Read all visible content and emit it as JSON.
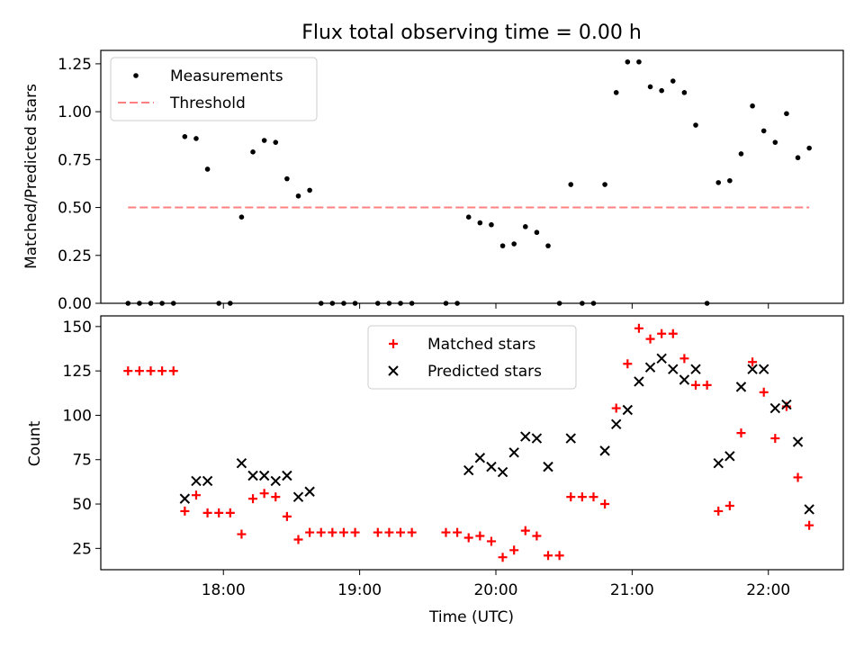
{
  "chart_data": [
    {
      "type": "scatter",
      "title": "Flux total observing time = 0.00 h",
      "xlabel": "",
      "ylabel": "Matched/Predicted stars",
      "ylim": [
        0,
        1.32
      ],
      "yticks": [
        "0.00",
        "0.25",
        "0.50",
        "0.75",
        "1.00",
        "1.25"
      ],
      "ytick_values": [
        0,
        0.25,
        0.5,
        0.75,
        1.0,
        1.25
      ],
      "legend_position": "upper-left",
      "series": [
        {
          "name": "Measurements",
          "marker": "dot",
          "color": "#000000",
          "points": [
            [
              "17:18",
              0
            ],
            [
              "17:23",
              0
            ],
            [
              "17:28",
              0
            ],
            [
              "17:33",
              0
            ],
            [
              "17:38",
              0
            ],
            [
              "17:43",
              0.87
            ],
            [
              "17:48",
              0.86
            ],
            [
              "17:53",
              0.7
            ],
            [
              "17:58",
              0
            ],
            [
              "18:03",
              0
            ],
            [
              "18:08",
              0.45
            ],
            [
              "18:13",
              0.79
            ],
            [
              "18:18",
              0.85
            ],
            [
              "18:23",
              0.84
            ],
            [
              "18:28",
              0.65
            ],
            [
              "18:33",
              0.56
            ],
            [
              "18:38",
              0.59
            ],
            [
              "18:43",
              0
            ],
            [
              "18:48",
              0
            ],
            [
              "18:53",
              0
            ],
            [
              "18:58",
              0
            ],
            [
              "19:08",
              0
            ],
            [
              "19:13",
              0
            ],
            [
              "19:18",
              0
            ],
            [
              "19:23",
              0
            ],
            [
              "19:38",
              0
            ],
            [
              "19:43",
              0
            ],
            [
              "19:48",
              0.45
            ],
            [
              "19:53",
              0.42
            ],
            [
              "19:58",
              0.41
            ],
            [
              "20:03",
              0.3
            ],
            [
              "20:08",
              0.31
            ],
            [
              "20:13",
              0.4
            ],
            [
              "20:18",
              0.37
            ],
            [
              "20:23",
              0.3
            ],
            [
              "20:28",
              0
            ],
            [
              "20:33",
              0.62
            ],
            [
              "20:38",
              0
            ],
            [
              "20:43",
              0
            ],
            [
              "20:48",
              0.62
            ],
            [
              "20:53",
              1.1
            ],
            [
              "20:58",
              1.26
            ],
            [
              "21:03",
              1.26
            ],
            [
              "21:08",
              1.13
            ],
            [
              "21:13",
              1.11
            ],
            [
              "21:18",
              1.16
            ],
            [
              "21:23",
              1.1
            ],
            [
              "21:28",
              0.93
            ],
            [
              "21:33",
              0
            ],
            [
              "21:38",
              0.63
            ],
            [
              "21:43",
              0.64
            ],
            [
              "21:48",
              0.78
            ],
            [
              "21:53",
              1.03
            ],
            [
              "21:58",
              0.9
            ],
            [
              "22:03",
              0.84
            ],
            [
              "22:08",
              0.99
            ],
            [
              "22:13",
              0.76
            ],
            [
              "22:18",
              0.81
            ]
          ]
        },
        {
          "name": "Threshold",
          "marker": "dashed-line",
          "color": "#ff8080",
          "points": [
            [
              "17:18",
              0.5
            ],
            [
              "22:18",
              0.5
            ]
          ]
        }
      ]
    },
    {
      "type": "scatter",
      "title": "",
      "xlabel": "Time (UTC)",
      "ylabel": "Count",
      "ylim": [
        13,
        156
      ],
      "yticks": [
        "25",
        "50",
        "75",
        "100",
        "125",
        "150"
      ],
      "ytick_values": [
        25,
        50,
        75,
        100,
        125,
        150
      ],
      "xlim": [
        "17:06",
        "22:33"
      ],
      "xticks": [
        "18:00",
        "19:00",
        "20:00",
        "21:00",
        "22:00"
      ],
      "legend_position": "upper-center",
      "series": [
        {
          "name": "Matched stars",
          "marker": "plus",
          "color": "#ff0000",
          "points": [
            [
              "17:18",
              125
            ],
            [
              "17:23",
              125
            ],
            [
              "17:28",
              125
            ],
            [
              "17:33",
              125
            ],
            [
              "17:38",
              125
            ],
            [
              "17:43",
              46
            ],
            [
              "17:48",
              55
            ],
            [
              "17:53",
              45
            ],
            [
              "17:58",
              45
            ],
            [
              "18:03",
              45
            ],
            [
              "18:08",
              33
            ],
            [
              "18:13",
              53
            ],
            [
              "18:18",
              56
            ],
            [
              "18:23",
              54
            ],
            [
              "18:28",
              43
            ],
            [
              "18:33",
              30
            ],
            [
              "18:38",
              34
            ],
            [
              "18:43",
              34
            ],
            [
              "18:48",
              34
            ],
            [
              "18:53",
              34
            ],
            [
              "18:58",
              34
            ],
            [
              "19:08",
              34
            ],
            [
              "19:13",
              34
            ],
            [
              "19:18",
              34
            ],
            [
              "19:23",
              34
            ],
            [
              "19:38",
              34
            ],
            [
              "19:43",
              34
            ],
            [
              "19:48",
              31
            ],
            [
              "19:53",
              32
            ],
            [
              "19:58",
              29
            ],
            [
              "20:03",
              20
            ],
            [
              "20:08",
              24
            ],
            [
              "20:13",
              35
            ],
            [
              "20:18",
              32
            ],
            [
              "20:23",
              21
            ],
            [
              "20:28",
              21
            ],
            [
              "20:33",
              54
            ],
            [
              "20:38",
              54
            ],
            [
              "20:43",
              54
            ],
            [
              "20:48",
              50
            ],
            [
              "20:53",
              104
            ],
            [
              "20:58",
              129
            ],
            [
              "21:03",
              149
            ],
            [
              "21:08",
              143
            ],
            [
              "21:13",
              146
            ],
            [
              "21:18",
              146
            ],
            [
              "21:23",
              132
            ],
            [
              "21:28",
              117
            ],
            [
              "21:33",
              117
            ],
            [
              "21:38",
              46
            ],
            [
              "21:43",
              49
            ],
            [
              "21:48",
              90
            ],
            [
              "21:53",
              130
            ],
            [
              "21:58",
              113
            ],
            [
              "22:03",
              87
            ],
            [
              "22:08",
              105
            ],
            [
              "22:13",
              65
            ],
            [
              "22:18",
              38
            ]
          ]
        },
        {
          "name": "Predicted stars",
          "marker": "x",
          "color": "#000000",
          "points": [
            [
              "17:43",
              53
            ],
            [
              "17:48",
              63
            ],
            [
              "17:53",
              63
            ],
            [
              "18:08",
              73
            ],
            [
              "18:13",
              66
            ],
            [
              "18:18",
              66
            ],
            [
              "18:23",
              63
            ],
            [
              "18:28",
              66
            ],
            [
              "18:33",
              54
            ],
            [
              "18:38",
              57
            ],
            [
              "19:48",
              69
            ],
            [
              "19:53",
              76
            ],
            [
              "19:58",
              71
            ],
            [
              "20:03",
              68
            ],
            [
              "20:08",
              79
            ],
            [
              "20:13",
              88
            ],
            [
              "20:18",
              87
            ],
            [
              "20:23",
              71
            ],
            [
              "20:33",
              87
            ],
            [
              "20:48",
              80
            ],
            [
              "20:53",
              95
            ],
            [
              "20:58",
              103
            ],
            [
              "21:03",
              119
            ],
            [
              "21:08",
              127
            ],
            [
              "21:13",
              132
            ],
            [
              "21:18",
              126
            ],
            [
              "21:23",
              120
            ],
            [
              "21:28",
              126
            ],
            [
              "21:38",
              73
            ],
            [
              "21:43",
              77
            ],
            [
              "21:48",
              116
            ],
            [
              "21:53",
              126
            ],
            [
              "21:58",
              126
            ],
            [
              "22:03",
              104
            ],
            [
              "22:08",
              106
            ],
            [
              "22:13",
              85
            ],
            [
              "22:18",
              47
            ]
          ]
        }
      ]
    }
  ]
}
